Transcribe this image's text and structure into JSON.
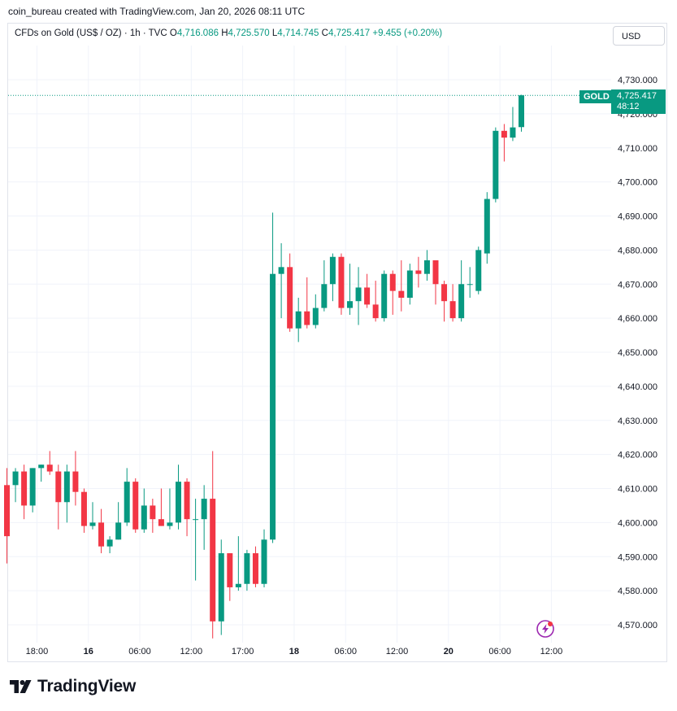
{
  "caption": "coin_bureau created with TradingView.com, Jan 20, 2026 08:11 UTC",
  "header": {
    "instrument": "CFDs on Gold (US$ / OZ) · 1h · TVC",
    "o_label": "O",
    "o_value": "4,716.086",
    "h_label": "H",
    "h_value": "4,725.570",
    "l_label": "L",
    "l_value": "4,714.745",
    "c_label": "C",
    "c_value": "4,725.417",
    "change": "+9.455 (+0.20%)",
    "currency": "USD"
  },
  "last_price": {
    "symbol": "GOLD",
    "price": "4,725.417",
    "countdown": "48:12",
    "value": 4725.417
  },
  "logo": {
    "text": "TradingView"
  },
  "icons": {
    "lightning": "lightning-icon",
    "logo": "tradingview-logo-icon"
  },
  "colors": {
    "up": "#089981",
    "down": "#f23645",
    "grid": "#f0f3fa",
    "accent": "#089981"
  },
  "chart_data": {
    "type": "candlestick",
    "title": "CFDs on Gold (US$ / OZ) · 1h · TVC",
    "ylim": [
      4565,
      4734
    ],
    "yticks": [
      {
        "v": 4570,
        "label": "4,570.000"
      },
      {
        "v": 4580,
        "label": "4,580.000"
      },
      {
        "v": 4590,
        "label": "4,590.000"
      },
      {
        "v": 4600,
        "label": "4,600.000"
      },
      {
        "v": 4610,
        "label": "4,610.000"
      },
      {
        "v": 4620,
        "label": "4,620.000"
      },
      {
        "v": 4630,
        "label": "4,630.000"
      },
      {
        "v": 4640,
        "label": "4,640.000"
      },
      {
        "v": 4650,
        "label": "4,650.000"
      },
      {
        "v": 4660,
        "label": "4,660.000"
      },
      {
        "v": 4670,
        "label": "4,670.000"
      },
      {
        "v": 4680,
        "label": "4,680.000"
      },
      {
        "v": 4690,
        "label": "4,690.000"
      },
      {
        "v": 4700,
        "label": "4,700.000"
      },
      {
        "v": 4710,
        "label": "4,710.000"
      },
      {
        "v": 4720,
        "label": "4,720.000"
      },
      {
        "v": 4730,
        "label": "4,730.000"
      }
    ],
    "xticks": [
      {
        "i": 3.5,
        "label": "18:00",
        "major": false
      },
      {
        "i": 9.5,
        "label": "16",
        "major": true
      },
      {
        "i": 15.5,
        "label": "06:00",
        "major": false
      },
      {
        "i": 21.5,
        "label": "12:00",
        "major": false
      },
      {
        "i": 27.5,
        "label": "17:00",
        "major": false
      },
      {
        "i": 33.5,
        "label": "18",
        "major": true
      },
      {
        "i": 39.5,
        "label": "06:00",
        "major": false
      },
      {
        "i": 45.5,
        "label": "12:00",
        "major": false
      },
      {
        "i": 51.5,
        "label": "20",
        "major": true
      },
      {
        "i": 57.5,
        "label": "06:00",
        "major": false
      },
      {
        "i": 63.5,
        "label": "12:00",
        "major": false
      }
    ],
    "candles": [
      [
        4611,
        4616,
        4588,
        4596
      ],
      [
        4611,
        4616,
        4606,
        4615
      ],
      [
        4615,
        4617,
        4601,
        4605
      ],
      [
        4605,
        4616,
        4603,
        4616
      ],
      [
        4616,
        4617,
        4612,
        4617
      ],
      [
        4617,
        4621,
        4614,
        4615
      ],
      [
        4615,
        4617,
        4598,
        4606
      ],
      [
        4606,
        4617,
        4600,
        4615
      ],
      [
        4615,
        4621,
        4605,
        4609
      ],
      [
        4609,
        4610,
        4597,
        4599
      ],
      [
        4599,
        4606,
        4598,
        4600
      ],
      [
        4600,
        4604,
        4591,
        4593
      ],
      [
        4593,
        4596,
        4591,
        4595
      ],
      [
        4595,
        4606,
        4595,
        4600
      ],
      [
        4600,
        4616,
        4599,
        4612
      ],
      [
        4612,
        4613,
        4597,
        4598
      ],
      [
        4598,
        4610,
        4597,
        4605
      ],
      [
        4605,
        4607,
        4597,
        4601
      ],
      [
        4601,
        4610,
        4599,
        4599
      ],
      [
        4599,
        4610,
        4598,
        4600
      ],
      [
        4600,
        4617,
        4598,
        4612
      ],
      [
        4612,
        4613,
        4596,
        4601
      ],
      [
        4601,
        4607,
        4583,
        4601
      ],
      [
        4601,
        4611,
        4592,
        4607
      ],
      [
        4607,
        4621,
        4566,
        4571
      ],
      [
        4571,
        4595,
        4567,
        4591
      ],
      [
        4591,
        4591,
        4577,
        4581
      ],
      [
        4581,
        4596,
        4580,
        4582
      ],
      [
        4582,
        4592,
        4580,
        4591
      ],
      [
        4591,
        4593,
        4581,
        4582
      ],
      [
        4582,
        4598,
        4581,
        4595
      ],
      [
        4595,
        4691,
        4594,
        4673
      ],
      [
        4673,
        4682,
        4660,
        4675
      ],
      [
        4675,
        4679,
        4656,
        4657
      ],
      [
        4657,
        4666,
        4653,
        4662
      ],
      [
        4662,
        4672,
        4657,
        4658
      ],
      [
        4658,
        4667,
        4657,
        4663
      ],
      [
        4663,
        4677,
        4662,
        4670
      ],
      [
        4670,
        4679,
        4665,
        4678
      ],
      [
        4678,
        4679,
        4661,
        4663
      ],
      [
        4663,
        4676,
        4661,
        4665
      ],
      [
        4665,
        4675,
        4658,
        4669
      ],
      [
        4669,
        4673,
        4663,
        4664
      ],
      [
        4664,
        4671,
        4659,
        4660
      ],
      [
        4660,
        4674,
        4659,
        4673
      ],
      [
        4673,
        4674,
        4661,
        4668
      ],
      [
        4668,
        4677,
        4662,
        4666
      ],
      [
        4666,
        4676,
        4664,
        4674
      ],
      [
        4674,
        4678,
        4669,
        4673
      ],
      [
        4673,
        4680,
        4671,
        4677
      ],
      [
        4677,
        4677,
        4664,
        4670
      ],
      [
        4670,
        4671,
        4659,
        4665
      ],
      [
        4665,
        4670,
        4659,
        4660
      ],
      [
        4660,
        4677,
        4659,
        4670
      ],
      [
        4670,
        4675,
        4666,
        4670
      ],
      [
        4668,
        4681,
        4667,
        4680
      ],
      [
        4679,
        4697,
        4676,
        4695
      ],
      [
        4695,
        4716,
        4694,
        4715
      ],
      [
        4715,
        4717,
        4706,
        4713
      ],
      [
        4713,
        4722,
        4712,
        4716
      ],
      [
        4716.086,
        4725.57,
        4714.745,
        4725.417
      ]
    ]
  }
}
